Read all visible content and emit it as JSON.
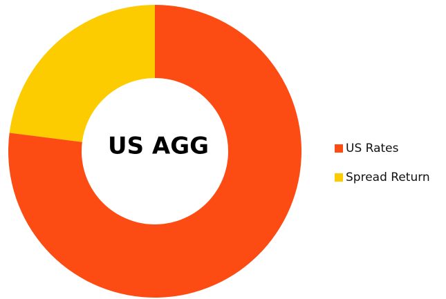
{
  "chart_data": {
    "type": "pie",
    "donut": true,
    "center_label": "US AGG",
    "categories": [
      "US Rates",
      "Spread Return"
    ],
    "values": [
      77,
      23
    ],
    "colors": [
      "#fc4c14",
      "#fccc00"
    ],
    "legend": "right"
  }
}
